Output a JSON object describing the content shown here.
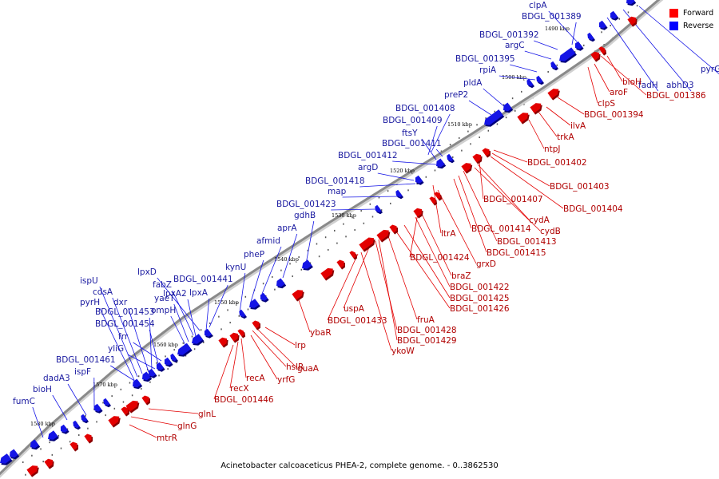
{
  "caption": "Acinetobacter calcoaceticus PHEA-2, complete genome. - 0..3862530",
  "legend": {
    "forward": {
      "label": "Forward",
      "color": "#ff0000"
    },
    "reverse": {
      "label": "Reverse",
      "color": "#0000ff"
    }
  },
  "colors": {
    "forward": "#e30000",
    "reverse": "#1414e6",
    "backbone": "#8a8a8a"
  },
  "scale_labels": [
    "1490 kbp",
    "1500 kbp",
    "1510 kbp",
    "1520 kbp",
    "1530 kbp",
    "1540 kbp",
    "1550 kbp",
    "1560 kbp",
    "1570 kbp",
    "1580 kbp"
  ],
  "reverse_genes": [
    "pyrG",
    "abhD3",
    "fadH",
    "clpA",
    "BDGL_001389",
    "BDGL_001392",
    "argC",
    "BDGL_001395",
    "rpiA",
    "pldA",
    "preP2",
    "BDGL_001408",
    "BDGL_001409",
    "ftsY",
    "BDGL_001411",
    "BDGL_001412",
    "argD",
    "BDGL_001418",
    "map",
    "BDGL_001423",
    "gdhB",
    "aprA",
    "afmid",
    "pheP",
    "kynU",
    "BDGL_001441",
    "lpxD",
    "fabZ",
    "lpxA2",
    "lpxA",
    "yaeT",
    "ompH",
    "ispU",
    "cdsA",
    "pyrH",
    "dxr",
    "BDGL_001453",
    "BDGL_001454",
    "frr",
    "yliG",
    "BDGL_001461",
    "ispF",
    "dadA3",
    "bioH",
    "fumC"
  ],
  "forward_genes": [
    "bioH",
    "BDGL_001386",
    "aroF",
    "clpS",
    "BDGL_001394",
    "ilvA",
    "trkA",
    "ntpJ",
    "BDGL_001402",
    "BDGL_001403",
    "BDGL_001407",
    "BDGL_001404",
    "cydA",
    "cydB",
    "BDGL_001413",
    "BDGL_001414",
    "BDGL_001415",
    "ltrA",
    "grxD",
    "BDGL_001424",
    "braZ",
    "BDGL_001422",
    "BDGL_001425",
    "BDGL_001426",
    "fruA",
    "uspA",
    "BDGL_001433",
    "BDGL_001428",
    "BDGL_001429",
    "ykoW",
    "ybaR",
    "lrp",
    "guaA",
    "hslR",
    "yrfG",
    "recA",
    "recX",
    "BDGL_001446",
    "glnL",
    "glnG",
    "mtrR"
  ]
}
